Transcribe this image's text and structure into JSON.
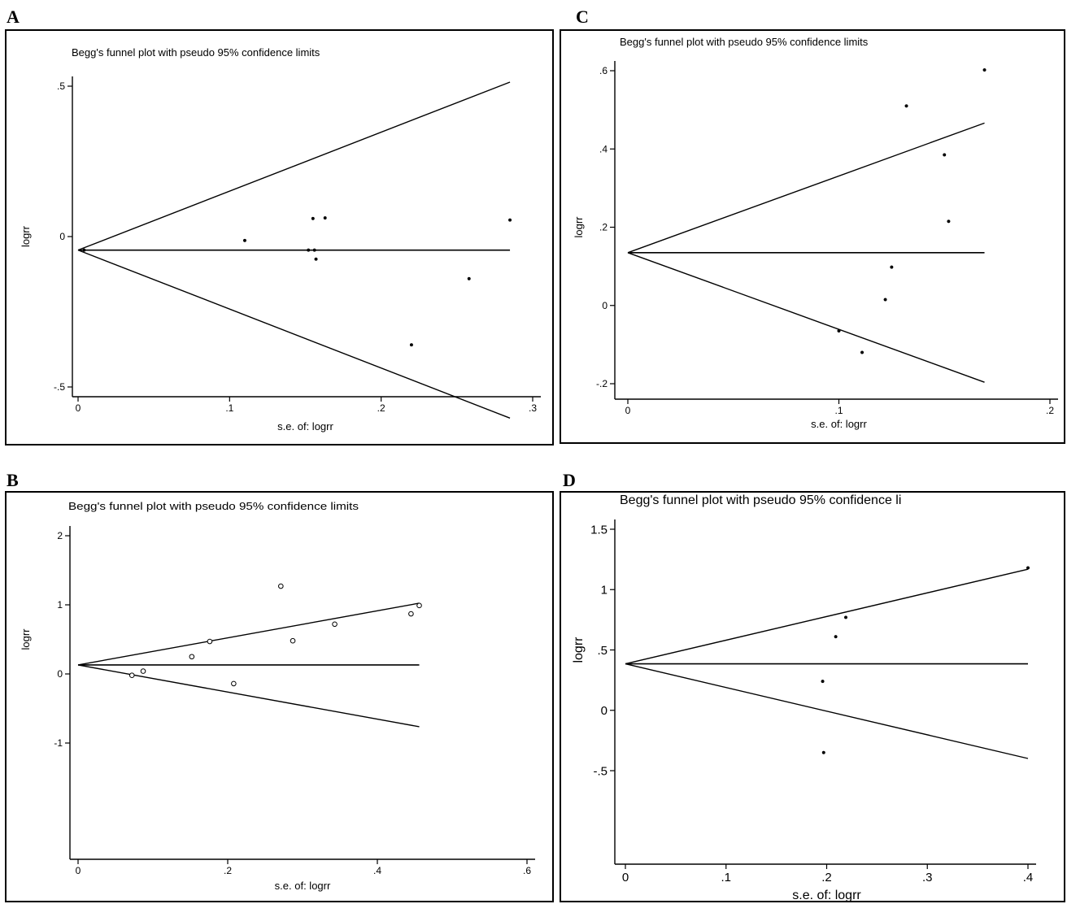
{
  "panels": [
    {
      "id": "A",
      "letter": "A"
    },
    {
      "id": "C",
      "letter": "C"
    },
    {
      "id": "B",
      "letter": "B"
    },
    {
      "id": "D",
      "letter": "D"
    }
  ],
  "chart_data": [
    {
      "panel": "A",
      "type": "scatter",
      "title": "Begg's funnel plot with pseudo 95% confidence limits",
      "xlabel": "s.e. of: logrr",
      "ylabel": "logrr",
      "xlim": [
        0,
        0.3
      ],
      "ylim": [
        -0.5,
        0.5
      ],
      "x_ticks": [
        {
          "v": 0,
          "label": "0"
        },
        {
          "v": 0.1,
          "label": ".1"
        },
        {
          "v": 0.2,
          "label": ".2"
        },
        {
          "v": 0.3,
          "label": ".3"
        }
      ],
      "y_ticks": [
        {
          "v": -0.5,
          "label": "-.5"
        },
        {
          "v": 0,
          "label": "0"
        },
        {
          "v": 0.5,
          "label": ".5"
        }
      ],
      "pooled": -0.045,
      "funnel_xmax": 0.285,
      "marker": "dot",
      "points": [
        {
          "x": 0.004,
          "y": -0.045
        },
        {
          "x": 0.11,
          "y": -0.013
        },
        {
          "x": 0.152,
          "y": -0.045
        },
        {
          "x": 0.155,
          "y": 0.06
        },
        {
          "x": 0.156,
          "y": -0.045
        },
        {
          "x": 0.157,
          "y": -0.075
        },
        {
          "x": 0.163,
          "y": 0.062
        },
        {
          "x": 0.22,
          "y": -0.36
        },
        {
          "x": 0.258,
          "y": -0.14
        },
        {
          "x": 0.285,
          "y": 0.055
        }
      ]
    },
    {
      "panel": "C",
      "type": "scatter",
      "title": "Begg's funnel plot with pseudo 95% confidence limits",
      "xlabel": "s.e. of: logrr",
      "ylabel": "logrr",
      "xlim": [
        0,
        0.2
      ],
      "ylim": [
        -0.2,
        0.6
      ],
      "x_ticks": [
        {
          "v": 0,
          "label": "0"
        },
        {
          "v": 0.1,
          "label": ".1"
        },
        {
          "v": 0.2,
          "label": ".2"
        }
      ],
      "y_ticks": [
        {
          "v": -0.2,
          "label": "-.2"
        },
        {
          "v": 0,
          "label": "0"
        },
        {
          "v": 0.2,
          "label": ".2"
        },
        {
          "v": 0.4,
          "label": ".4"
        },
        {
          "v": 0.6,
          "label": ".6"
        }
      ],
      "pooled": 0.135,
      "funnel_xmax": 0.169,
      "marker": "dot",
      "points": [
        {
          "x": 0.1,
          "y": -0.065
        },
        {
          "x": 0.111,
          "y": -0.12
        },
        {
          "x": 0.122,
          "y": 0.015
        },
        {
          "x": 0.125,
          "y": 0.098
        },
        {
          "x": 0.132,
          "y": 0.51
        },
        {
          "x": 0.15,
          "y": 0.385
        },
        {
          "x": 0.152,
          "y": 0.215
        },
        {
          "x": 0.169,
          "y": 0.602
        }
      ]
    },
    {
      "panel": "B",
      "type": "scatter",
      "title": "Begg's funnel plot with pseudo 95% confidence limits",
      "xlabel": "s.e. of: logrr",
      "ylabel": "logrr",
      "xlim": [
        0,
        0.6
      ],
      "ylim": [
        -1,
        2
      ],
      "x_ticks": [
        {
          "v": 0,
          "label": "0"
        },
        {
          "v": 0.2,
          "label": ".2"
        },
        {
          "v": 0.4,
          "label": ".4"
        },
        {
          "v": 0.6,
          "label": ".6"
        }
      ],
      "y_ticks": [
        {
          "v": -1,
          "label": "-1"
        },
        {
          "v": 0,
          "label": "0"
        },
        {
          "v": 1,
          "label": "1"
        },
        {
          "v": 2,
          "label": "2"
        }
      ],
      "pooled": 0.13,
      "funnel_xmax": 0.456,
      "marker": "circle",
      "points": [
        {
          "x": 0.072,
          "y": -0.02
        },
        {
          "x": 0.087,
          "y": 0.04
        },
        {
          "x": 0.152,
          "y": 0.25
        },
        {
          "x": 0.176,
          "y": 0.47
        },
        {
          "x": 0.208,
          "y": -0.14
        },
        {
          "x": 0.271,
          "y": 1.27
        },
        {
          "x": 0.287,
          "y": 0.48
        },
        {
          "x": 0.343,
          "y": 0.72
        },
        {
          "x": 0.445,
          "y": 0.87
        },
        {
          "x": 0.456,
          "y": 0.99
        }
      ]
    },
    {
      "panel": "D",
      "type": "scatter",
      "title": "Begg's funnel plot with pseudo 95% confidence li",
      "xlabel": "s.e. of: logrr",
      "ylabel": "logrr",
      "xlim": [
        0,
        0.4
      ],
      "ylim": [
        -0.5,
        1.5
      ],
      "x_ticks": [
        {
          "v": 0,
          "label": "0"
        },
        {
          "v": 0.1,
          "label": ".1"
        },
        {
          "v": 0.2,
          "label": ".2"
        },
        {
          "v": 0.3,
          "label": ".3"
        },
        {
          "v": 0.4,
          "label": ".4"
        }
      ],
      "y_ticks": [
        {
          "v": -0.5,
          "label": "-.5"
        },
        {
          "v": 0,
          "label": "0"
        },
        {
          "v": 0.5,
          "label": ".5"
        },
        {
          "v": 1,
          "label": "1"
        },
        {
          "v": 1.5,
          "label": "1.5"
        }
      ],
      "pooled": 0.385,
      "funnel_xmax": 0.4,
      "marker": "dot",
      "points": [
        {
          "x": 0.196,
          "y": 0.24
        },
        {
          "x": 0.197,
          "y": -0.35
        },
        {
          "x": 0.209,
          "y": 0.61
        },
        {
          "x": 0.219,
          "y": 0.77
        },
        {
          "x": 0.4,
          "y": 1.18
        }
      ]
    }
  ]
}
